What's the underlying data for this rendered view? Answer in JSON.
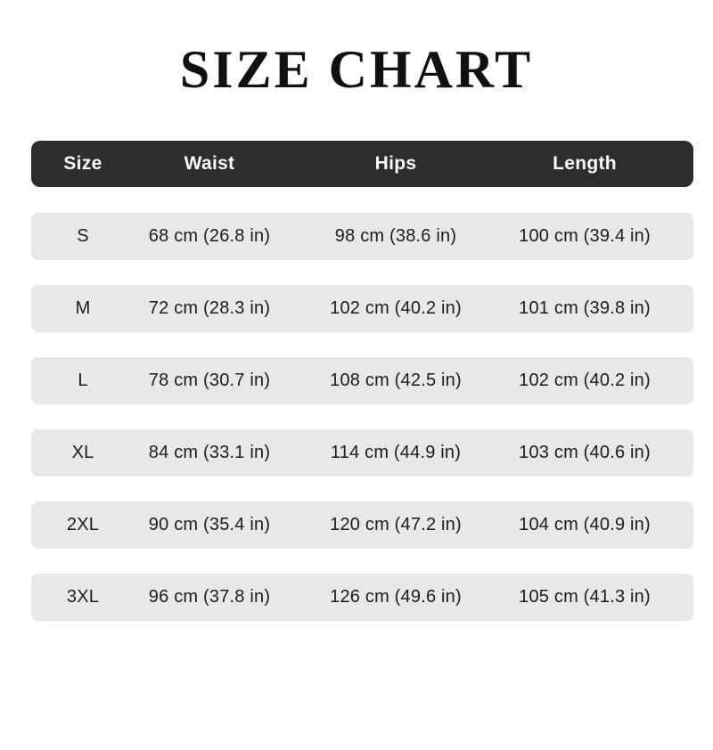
{
  "title": "SIZE CHART",
  "colors": {
    "page_bg": "#ffffff",
    "title_color": "#111111",
    "header_bg": "#2d2d2d",
    "header_text": "#fafafa",
    "row_bg": "#e8e8e8",
    "row_text": "#1c1c1c"
  },
  "chart_data": {
    "type": "table",
    "title": "SIZE CHART",
    "columns": [
      "Size",
      "Waist",
      "Hips",
      "Length"
    ],
    "rows": [
      [
        "S",
        "68 cm (26.8 in)",
        "98 cm (38.6 in)",
        "100 cm (39.4 in)"
      ],
      [
        "M",
        "72 cm (28.3 in)",
        "102 cm (40.2 in)",
        "101 cm (39.8 in)"
      ],
      [
        "L",
        "78 cm (30.7 in)",
        "108 cm (42.5 in)",
        "102 cm (40.2 in)"
      ],
      [
        "XL",
        "84 cm (33.1 in)",
        "114 cm (44.9 in)",
        "103 cm (40.6 in)"
      ],
      [
        "2XL",
        "90 cm (35.4 in)",
        "120 cm (47.2 in)",
        "104 cm (40.9 in)"
      ],
      [
        "3XL",
        "96 cm (37.8 in)",
        "126 cm (49.6 in)",
        "105 cm (41.3 in)"
      ]
    ]
  }
}
